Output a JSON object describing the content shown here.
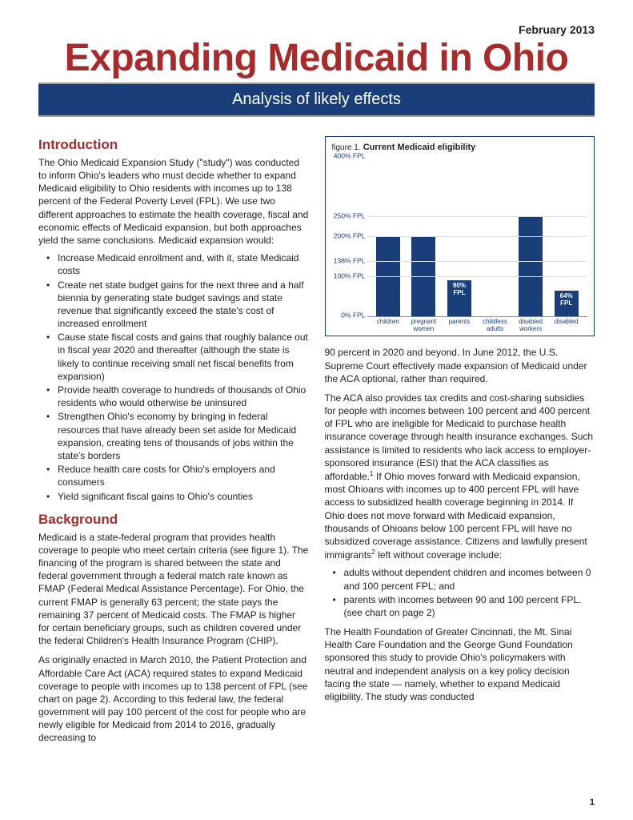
{
  "meta": {
    "date": "February  2013",
    "title": "Expanding Medicaid in Ohio",
    "subtitle": "Analysis of likely effects",
    "page_number": "1"
  },
  "intro": {
    "heading": "Introduction",
    "lead": "The Ohio Medicaid Expansion Study (\"study\") was conducted to inform Ohio's leaders who must decide whether to expand Medicaid eligibility to Ohio residents with incomes up to 138 percent of the Federal Poverty Level (FPL). We use two different approaches to estimate the health coverage, fiscal and economic effects of Medicaid expansion, but both approaches yield the same conclusions. Medicaid expansion would:",
    "bullets": [
      "Increase Medicaid enrollment and, with it, state Medicaid costs",
      "Create net state budget gains for the next three and a half biennia by generating state budget savings and state revenue that significantly exceed the state's cost of increased enrollment",
      "Cause state fiscal costs and gains that roughly balance out in fiscal year 2020 and thereafter (although the state is likely to continue receiving small net fiscal benefits from expansion)",
      "Provide health coverage to hundreds of thousands of Ohio residents who would otherwise be uninsured",
      "Strengthen Ohio's economy by bringing in federal resources that have already been set aside for Medicaid expansion, creating tens of thousands of jobs within the state's borders",
      "Reduce health care costs for Ohio's employers and consumers",
      "Yield significant fiscal gains to Ohio's counties"
    ]
  },
  "background": {
    "heading": "Background",
    "para1": "Medicaid is a state-federal program that provides health coverage to people who meet certain criteria (see figure 1).  The financing of the program is shared between the state and federal government through a federal match rate known as FMAP (Federal Medical Assistance Percentage).  For Ohio, the current FMAP is generally 63 percent; the state pays the remaining 37 percent of Medicaid costs.  The FMAP is higher for certain beneficiary groups, such as children covered under the federal Children's Health Insurance Program (CHIP).",
    "para2": "As originally enacted in March 2010, the Patient Protection and Affordable Care Act (ACA) required states to expand Medicaid coverage to people with incomes up to 138 percent of FPL (see chart  on page 2).  According to this federal law, the federal government will pay 100 percent of the cost for people who are newly eligible for Medicaid from 2014 to 2016, gradually decreasing to"
  },
  "right": {
    "para1": "90 percent in 2020 and beyond.  In June 2012, the U.S. Supreme Court effectively made expansion of Medicaid under the ACA optional, rather than required.",
    "para2_pre": "The ACA also provides tax credits and cost-sharing subsidies for people with incomes between 100 percent and 400 percent of FPL who are ineligible for Medicaid to purchase health insurance coverage through health insurance exchanges.  Such assistance is limited to residents who lack access to employer-sponsored insurance (ESI) that the ACA classifies as affordable.",
    "para2_post": " If Ohio moves forward with Medicaid expansion, most Ohioans with incomes up to 400 percent FPL will have access to subsidized health coverage beginning in 2014. If Ohio does not move forward with Medicaid expansion, thousands of Ohioans below 100 percent FPL will have no subsidized coverage assistance. Citizens and lawfully present immigrants",
    "para2_tail": " left without coverage include:",
    "bullets": [
      "adults without dependent children and incomes between 0 and 100 percent FPL; and",
      "parents with incomes between 90 and 100 percent FPL. (see chart on page 2)"
    ],
    "para3": "The Health Foundation of Greater Cincinnati, the Mt. Sinai Health Care Foundation and the George Gund Foundation sponsored this study to provide Ohio's policymakers with neutral and independent analysis on a key policy decision facing the state — namely, whether to expand Medicaid eligibility.  The study was conducted"
  },
  "chart": {
    "fig_label": "figure 1.",
    "fig_name": " Current Medicaid eligibility",
    "ymax": 400,
    "yticks": [
      {
        "value": 400,
        "label": "400% FPL"
      },
      {
        "value": 250,
        "label": "250% FPL"
      },
      {
        "value": 200,
        "label": "200% FPL"
      },
      {
        "value": 138,
        "label": "138% FPL"
      },
      {
        "value": 100,
        "label": "100% FPL"
      },
      {
        "value": 0,
        "label": "0% FPL"
      }
    ],
    "bar_color": "#1a3e7a",
    "bars": [
      {
        "value": 200,
        "label": "children",
        "note": ""
      },
      {
        "value": 200,
        "label": "pregnant women",
        "note": ""
      },
      {
        "value": 90,
        "label": "parents",
        "note": "90% FPL"
      },
      {
        "value": 0,
        "label": "childless adults",
        "note": ""
      },
      {
        "value": 250,
        "label": "disabled workers",
        "note": ""
      },
      {
        "value": 64,
        "label": "disabled",
        "note": "64% FPL"
      }
    ]
  }
}
